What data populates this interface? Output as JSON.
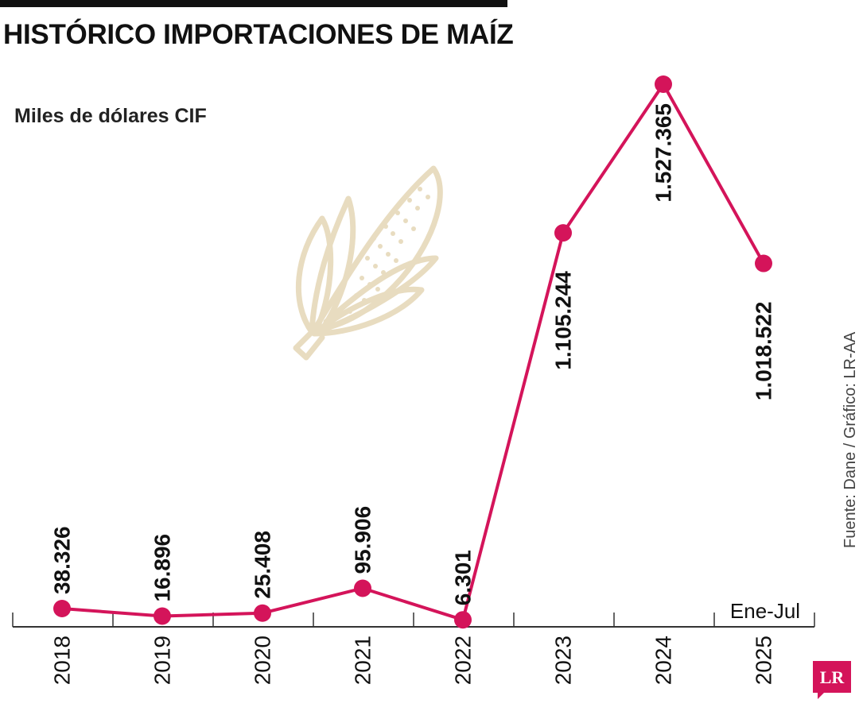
{
  "header": {
    "title": "HISTÓRICO IMPORTACIONES DE MAÍZ",
    "units": "Miles de dólares CIF"
  },
  "source": "Fuente: Dane / Gráfico: LR-AA",
  "logo_text": "LR",
  "colors": {
    "line": "#d4145a",
    "text": "#111111",
    "axis": "#333333",
    "corn_illustration": "#e8dcc0",
    "logo": "#d4145a"
  },
  "decoration": {
    "icon": "corn-cob-icon"
  },
  "chart_data": {
    "type": "line",
    "categories": [
      "2018",
      "2019",
      "2020",
      "2021",
      "2022",
      "2023",
      "2024",
      "2025"
    ],
    "values": [
      38326,
      16896,
      25408,
      95906,
      6301,
      1105244,
      1527365,
      1018522
    ],
    "data_labels": [
      "38.326",
      "16.896",
      "25.408",
      "95.906",
      "6.301",
      "1.105.244",
      "1.527.365",
      "1.018.522"
    ],
    "period_note": "Ene-Jul",
    "title": "HISTÓRICO IMPORTACIONES DE MAÍZ",
    "ylabel": "Miles de dólares CIF",
    "xlabel": "",
    "ylim": [
      0,
      1527365
    ],
    "grid": false,
    "legend": "none"
  }
}
